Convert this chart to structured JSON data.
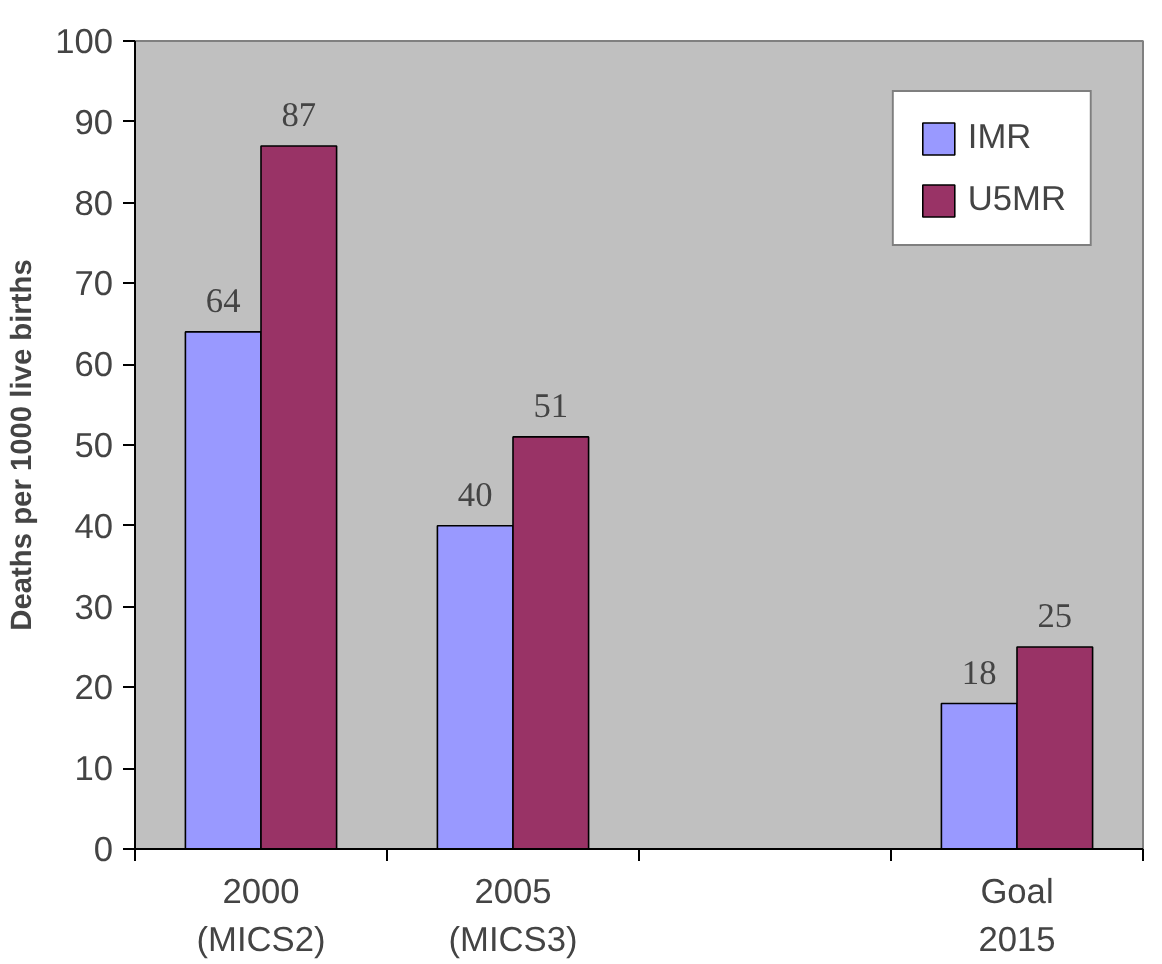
{
  "chart_data": {
    "type": "bar",
    "ylabel": "Deaths per 1000 live births",
    "categories": [
      "2000\n(MICS2)",
      "2005\n(MICS3)",
      null,
      "Goal\n2015"
    ],
    "series": [
      {
        "name": "IMR",
        "color": "#9999ff",
        "values": [
          64,
          40,
          null,
          18
        ]
      },
      {
        "name": "U5MR",
        "color": "#993366",
        "values": [
          87,
          51,
          null,
          25
        ]
      }
    ],
    "ylim": [
      0,
      100
    ],
    "yticks": [
      0,
      10,
      20,
      30,
      40,
      50,
      60,
      70,
      80,
      90,
      100
    ],
    "grid": false,
    "legend": "top right",
    "data_labels": true
  }
}
